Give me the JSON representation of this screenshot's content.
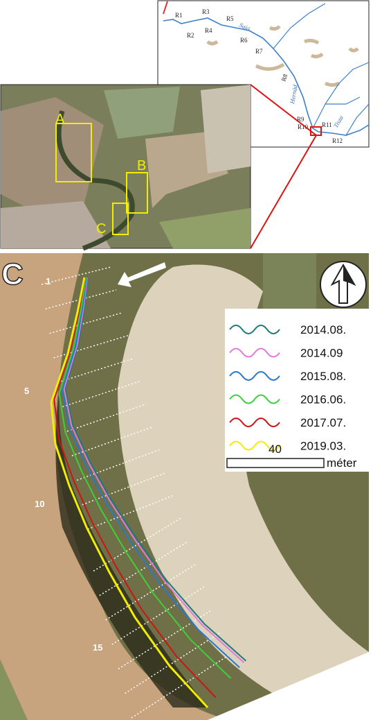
{
  "inset_map": {
    "reach_labels": [
      "R1",
      "R2",
      "R3",
      "R4",
      "R5",
      "R6",
      "R7",
      "R8",
      "R9",
      "R10",
      "R11",
      "R12"
    ],
    "rivers": [
      "Sajó",
      "Hernád",
      "Tisza"
    ]
  },
  "overview": {
    "site_labels": [
      "A",
      "B",
      "C"
    ]
  },
  "detail": {
    "panel_label": "C",
    "section_labels": [
      "1",
      "5",
      "10",
      "15"
    ],
    "legend": [
      {
        "label": "2014.08.",
        "color": "#1f7a78"
      },
      {
        "label": "2014.09",
        "color": "#e27ad9"
      },
      {
        "label": "2015.08.",
        "color": "#2a78c8"
      },
      {
        "label": "2016.06.",
        "color": "#3fcf3a"
      },
      {
        "label": "2017.07.",
        "color": "#cc1414"
      },
      {
        "label": "2019.03.",
        "color": "#f2ee00"
      }
    ],
    "scale": {
      "length": "40",
      "unit": "méter"
    }
  }
}
